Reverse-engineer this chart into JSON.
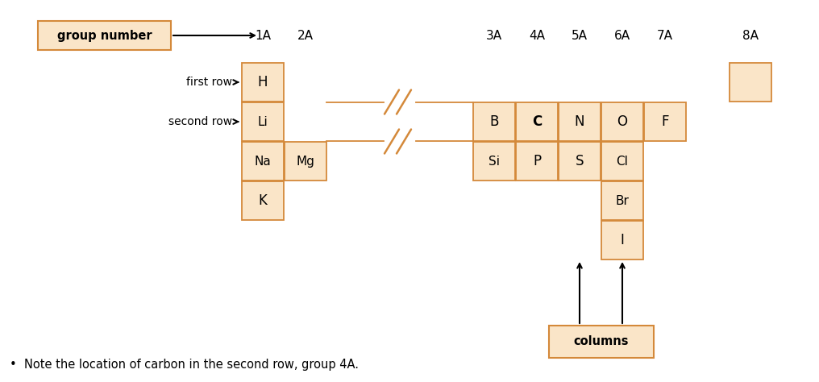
{
  "bg_color": "#ffffff",
  "box_fill": "#fae5c8",
  "box_edge": "#d4893a",
  "fig_width": 10.16,
  "fig_height": 4.74,
  "note_text": "Note the location of carbon in the second row, group 4A.",
  "group_number_label": "group number",
  "columns_label": "columns",
  "first_row_label": "first row",
  "second_row_label": "second row",
  "group_headers": [
    "1A",
    "2A",
    "3A",
    "4A",
    "5A",
    "6A",
    "7A",
    "8A"
  ],
  "elements": [
    {
      "symbol": "H",
      "col": 0,
      "row": 0,
      "bold": false
    },
    {
      "symbol": "Li",
      "col": 0,
      "row": 1,
      "bold": false
    },
    {
      "symbol": "B",
      "col": 4,
      "row": 1,
      "bold": false
    },
    {
      "symbol": "C",
      "col": 5,
      "row": 1,
      "bold": true
    },
    {
      "symbol": "N",
      "col": 6,
      "row": 1,
      "bold": false
    },
    {
      "symbol": "O",
      "col": 7,
      "row": 1,
      "bold": false
    },
    {
      "symbol": "F",
      "col": 8,
      "row": 1,
      "bold": false
    },
    {
      "symbol": "Na",
      "col": 0,
      "row": 2,
      "bold": false
    },
    {
      "symbol": "Mg",
      "col": 1,
      "row": 2,
      "bold": false
    },
    {
      "symbol": "Si",
      "col": 4,
      "row": 2,
      "bold": false
    },
    {
      "symbol": "P",
      "col": 5,
      "row": 2,
      "bold": false
    },
    {
      "symbol": "S",
      "col": 6,
      "row": 2,
      "bold": false
    },
    {
      "symbol": "Cl",
      "col": 7,
      "row": 2,
      "bold": false
    },
    {
      "symbol": "K",
      "col": 0,
      "row": 3,
      "bold": false
    },
    {
      "symbol": "Br",
      "col": 7,
      "row": 3,
      "bold": false
    },
    {
      "symbol": "I",
      "col": 7,
      "row": 4,
      "bold": false
    }
  ]
}
